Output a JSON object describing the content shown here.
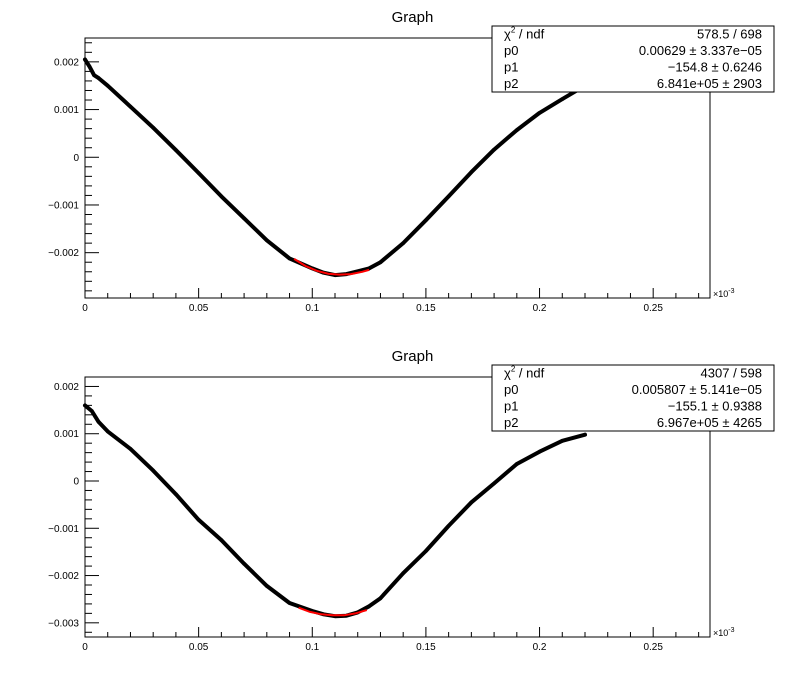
{
  "chart_data": [
    {
      "type": "scatter",
      "title": "Graph",
      "xlabel": "",
      "ylabel": "",
      "x_exponent": "×10",
      "x_exponent_power": "-3",
      "xlim": [
        0,
        0.275
      ],
      "ylim": [
        -0.00295,
        0.0025
      ],
      "xticks": [
        0,
        0.05,
        0.1,
        0.15,
        0.2,
        0.25
      ],
      "xtick_labels": [
        "0",
        "0.05",
        "0.1",
        "0.15",
        "0.2",
        "0.25"
      ],
      "yticks": [
        -0.002,
        -0.001,
        0,
        0.001,
        0.002
      ],
      "ytick_labels": [
        "−0.002",
        "−0.001",
        "0",
        "0.001",
        "0.002"
      ],
      "grid": false,
      "data_series": [
        {
          "color": "#000000",
          "x": [
            0,
            0.002,
            0.004,
            0.006,
            0.01,
            0.02,
            0.03,
            0.04,
            0.05,
            0.06,
            0.07,
            0.08,
            0.09,
            0.1,
            0.105,
            0.11,
            0.115,
            0.12,
            0.125,
            0.13,
            0.14,
            0.15,
            0.16,
            0.17,
            0.18,
            0.19,
            0.2,
            0.21,
            0.22
          ],
          "y": [
            0.00205,
            0.0019,
            0.00172,
            0.00166,
            0.0015,
            0.00106,
            0.00062,
            0.00015,
            -0.00033,
            -0.00082,
            -0.00128,
            -0.00174,
            -0.00212,
            -0.00233,
            -0.00242,
            -0.00247,
            -0.00245,
            -0.00239,
            -0.00233,
            -0.0022,
            -0.0018,
            -0.00132,
            -0.00082,
            -0.00031,
            0.00016,
            0.00057,
            0.00093,
            0.00122,
            0.0015
          ]
        }
      ],
      "fit_line": {
        "color": "#ff0000",
        "x": [
          0.092,
          0.097,
          0.102,
          0.107,
          0.112,
          0.117,
          0.122,
          0.125
        ],
        "y": [
          -0.00213,
          -0.00228,
          -0.00238,
          -0.00244,
          -0.00246,
          -0.00245,
          -0.0024,
          -0.00236
        ]
      },
      "stats_box": {
        "rows": [
          {
            "label": "χ",
            "label_sup": "2",
            "label_rest": " / ndf",
            "value": "578.5 / 698"
          },
          {
            "label": "p0",
            "value": "0.00629 ± 3.337e−05"
          },
          {
            "label": "p1",
            "value": "−154.8 ± 0.6246"
          },
          {
            "label": "p2",
            "value": "6.841e+05 ±  2903"
          }
        ]
      }
    },
    {
      "type": "scatter",
      "title": "Graph",
      "xlabel": "",
      "ylabel": "",
      "x_exponent": "×10",
      "x_exponent_power": "-3",
      "xlim": [
        0,
        0.275
      ],
      "ylim": [
        -0.0033,
        0.0022
      ],
      "xticks": [
        0,
        0.05,
        0.1,
        0.15,
        0.2,
        0.25
      ],
      "xtick_labels": [
        "0",
        "0.05",
        "0.1",
        "0.15",
        "0.2",
        "0.25"
      ],
      "yticks": [
        -0.003,
        -0.002,
        -0.001,
        0,
        0.001,
        0.002
      ],
      "ytick_labels": [
        "−0.003",
        "−0.002",
        "−0.001",
        "0",
        "0.001",
        "0.002"
      ],
      "grid": false,
      "data_series": [
        {
          "color": "#000000",
          "x": [
            0,
            0.003,
            0.006,
            0.01,
            0.02,
            0.03,
            0.04,
            0.05,
            0.06,
            0.07,
            0.08,
            0.09,
            0.1,
            0.105,
            0.11,
            0.115,
            0.12,
            0.125,
            0.13,
            0.14,
            0.15,
            0.16,
            0.17,
            0.18,
            0.19,
            0.2,
            0.21,
            0.22
          ],
          "y": [
            0.0016,
            0.00148,
            0.00125,
            0.00105,
            0.00068,
            0.00022,
            -0.00028,
            -0.00082,
            -0.00125,
            -0.00175,
            -0.00222,
            -0.00258,
            -0.00275,
            -0.00282,
            -0.00286,
            -0.00285,
            -0.00278,
            -0.00265,
            -0.00248,
            -0.00195,
            -0.00148,
            -0.00095,
            -0.00045,
            -5e-05,
            0.00036,
            0.00062,
            0.00085,
            0.00098
          ]
        }
      ],
      "fit_line": {
        "color": "#ff0000",
        "x": [
          0.094,
          0.099,
          0.104,
          0.109,
          0.114,
          0.119,
          0.124
        ],
        "y": [
          -0.00268,
          -0.00277,
          -0.00282,
          -0.00284,
          -0.00284,
          -0.0028,
          -0.00273
        ]
      },
      "stats_box": {
        "rows": [
          {
            "label": "χ",
            "label_sup": "2",
            "label_rest": " / ndf",
            "value": "4307 / 598"
          },
          {
            "label": "p0",
            "value": "0.005807 ± 5.141e−05"
          },
          {
            "label": "p1",
            "value": "−155.1 ± 0.9388"
          },
          {
            "label": "p2",
            "value": "6.967e+05 ±  4265"
          }
        ]
      }
    }
  ]
}
